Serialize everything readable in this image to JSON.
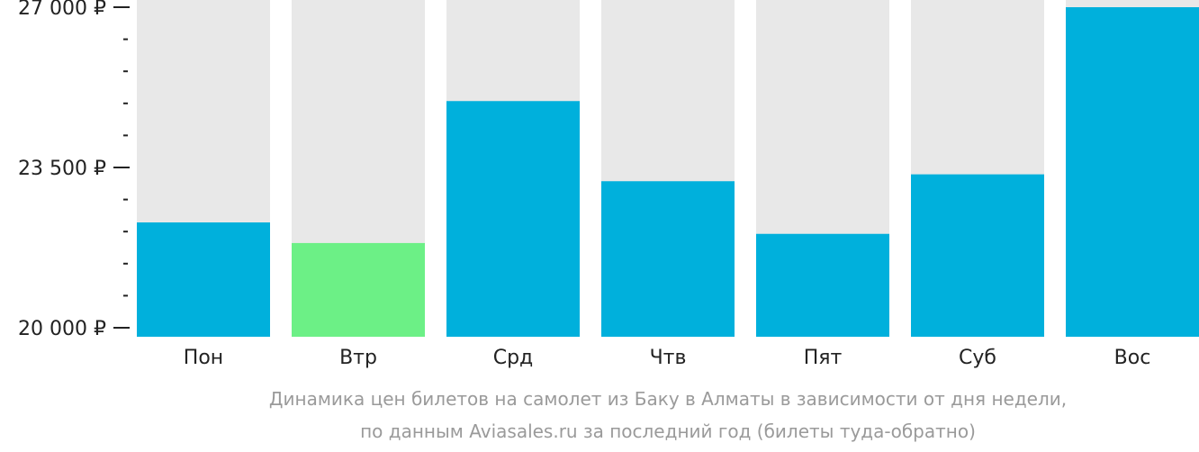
{
  "chart_data": {
    "type": "bar",
    "categories": [
      "Пон",
      "Втр",
      "Срд",
      "Чтв",
      "Пят",
      "Суб",
      "Вос"
    ],
    "values": [
      22300,
      21850,
      24950,
      23200,
      22050,
      23350,
      27000
    ],
    "ylim": [
      20000,
      27000
    ],
    "yticks": [
      {
        "value": 20000,
        "label": "20 000 ₽"
      },
      {
        "value": 23500,
        "label": "23 500 ₽"
      },
      {
        "value": 27000,
        "label": "27 000 ₽"
      }
    ],
    "minor_tick_step": 700,
    "grid": false,
    "legend": "none",
    "highlight_index": 1
  },
  "caption": {
    "line1": "Динамика цен билетов на самолет из Баку в Алматы в зависимости от дня недели,",
    "line2": "по данным Aviasales.ru за последний год (билеты туда-обратно)"
  },
  "colors": {
    "bar": "#00b0dc",
    "highlight": "#6cf086",
    "background_bar": "#e8e8e8",
    "axis": "#222222"
  }
}
